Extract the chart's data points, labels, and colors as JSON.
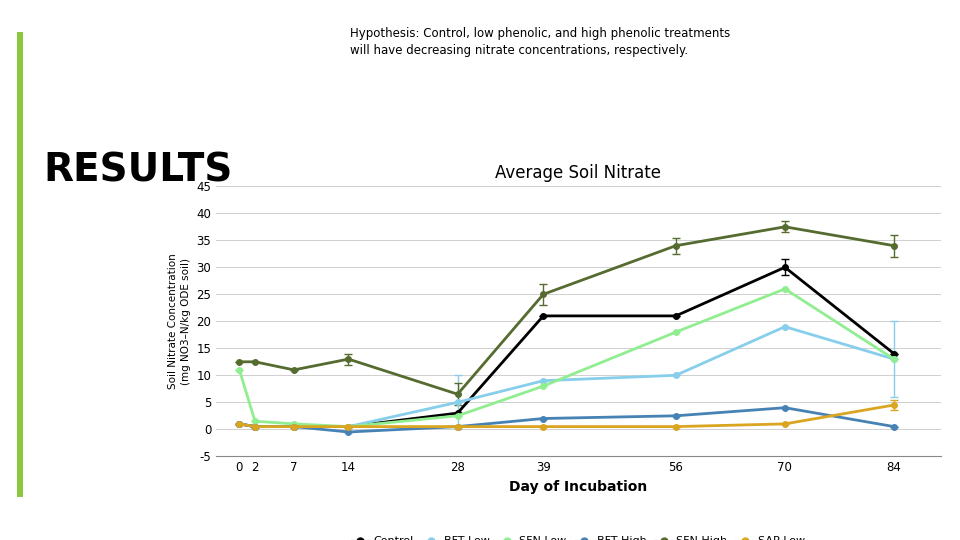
{
  "title": "Average Soil Nitrate",
  "xlabel": "Day of Incubation",
  "ylabel": "Soil Nitrate Concentration\n(mg NO3–N/kg ODE soil)",
  "x": [
    0,
    2,
    7,
    14,
    28,
    39,
    56,
    70,
    84
  ],
  "series": {
    "Control": {
      "y": [
        1,
        0.5,
        0.5,
        0.5,
        3,
        21,
        21,
        30,
        14
      ],
      "yerr": [
        0,
        0,
        0,
        0,
        0,
        0,
        0,
        1.5,
        0
      ],
      "color": "#000000",
      "marker": "o",
      "linewidth": 2.0
    },
    "BFT Low": {
      "y": [
        1,
        0.5,
        0.5,
        0.5,
        5,
        9,
        10,
        19,
        13
      ],
      "yerr": [
        0,
        0,
        0,
        0,
        5,
        0,
        0,
        0,
        7
      ],
      "color": "#87CEEB",
      "marker": "o",
      "linewidth": 2.0
    },
    "SFN Low": {
      "y": [
        11,
        1.5,
        1,
        0.5,
        2.5,
        8,
        18,
        26,
        13
      ],
      "yerr": [
        0,
        0,
        0,
        0,
        0,
        0,
        0,
        0,
        0
      ],
      "color": "#90EE90",
      "marker": "o",
      "linewidth": 2.0
    },
    "BFT High": {
      "y": [
        1,
        0.5,
        0.5,
        -0.5,
        0.5,
        2,
        2.5,
        4,
        0.5
      ],
      "yerr": [
        0,
        0,
        0,
        0,
        0,
        0,
        0,
        0,
        0
      ],
      "color": "#4682B4",
      "marker": "o",
      "linewidth": 2.0
    },
    "SFN High": {
      "y": [
        12.5,
        12.5,
        11,
        13,
        6.5,
        25,
        34,
        37.5,
        34
      ],
      "yerr": [
        0,
        0,
        0,
        1,
        2,
        2,
        1.5,
        1,
        2
      ],
      "color": "#556B2F",
      "marker": "o",
      "linewidth": 2.0
    },
    "SAP Low": {
      "y": [
        1,
        0.5,
        0.5,
        0.5,
        0.5,
        0.5,
        0.5,
        1,
        4.5
      ],
      "yerr": [
        0,
        0,
        0,
        0,
        0,
        0,
        0,
        0,
        1
      ],
      "color": "#DAA520",
      "marker": "o",
      "linewidth": 2.0
    }
  },
  "ylim": [
    -5,
    45
  ],
  "yticks": [
    -5,
    0,
    5,
    10,
    15,
    20,
    25,
    30,
    35,
    40,
    45
  ],
  "header_title": "RESULTS",
  "header_hypothesis": "Hypothesis: Control, low phenolic, and high phenolic treatments\nwill have decreasing nitrate concentrations, respectively.",
  "background_color": "#ffffff",
  "bar_color_left": "#8DC63F"
}
